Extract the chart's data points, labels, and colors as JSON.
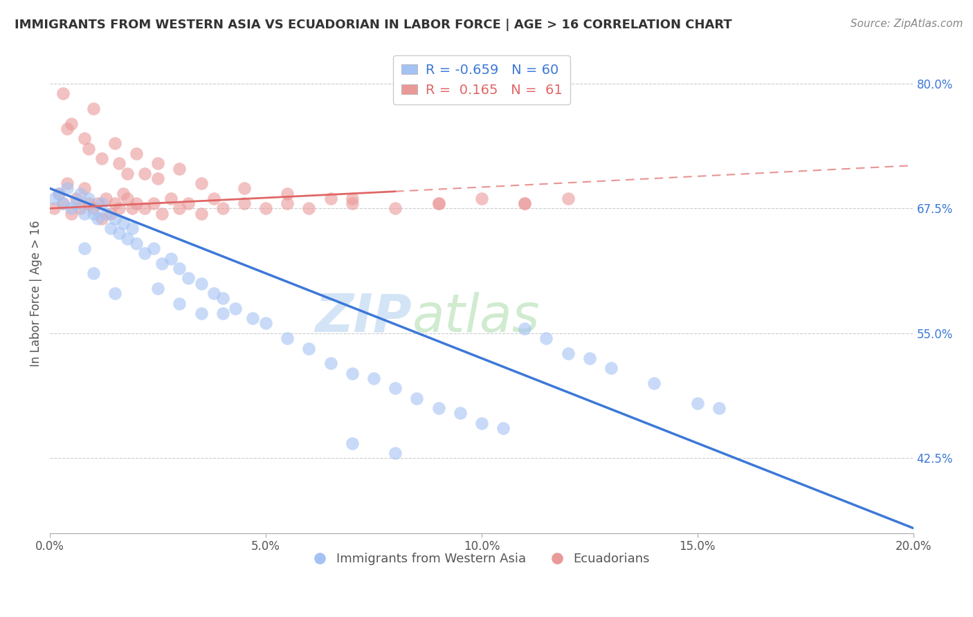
{
  "title": "IMMIGRANTS FROM WESTERN ASIA VS ECUADORIAN IN LABOR FORCE | AGE > 16 CORRELATION CHART",
  "source": "Source: ZipAtlas.com",
  "ylabel": "In Labor Force | Age > 16",
  "xlabel": "",
  "xlim": [
    0.0,
    20.0
  ],
  "ylim": [
    35.0,
    83.0
  ],
  "yticks": [
    42.5,
    55.0,
    67.5,
    80.0
  ],
  "xticks": [
    0.0,
    5.0,
    10.0,
    15.0,
    20.0
  ],
  "xtick_labels": [
    "0.0%",
    "5.0%",
    "10.0%",
    "15.0%",
    "20.0%"
  ],
  "legend_labels": [
    "Immigrants from Western Asia",
    "Ecuadorians"
  ],
  "blue_R": -0.659,
  "blue_N": 60,
  "pink_R": 0.165,
  "pink_N": 61,
  "blue_color": "#a4c2f4",
  "pink_color": "#ea9999",
  "blue_line_color": "#3c78d8",
  "pink_line_color": "#e06666",
  "background_color": "#ffffff",
  "grid_color": "#cccccc",
  "blue_scatter_x": [
    0.1,
    0.2,
    0.3,
    0.4,
    0.5,
    0.6,
    0.7,
    0.8,
    0.9,
    1.0,
    1.1,
    1.2,
    1.3,
    1.4,
    1.5,
    1.6,
    1.7,
    1.8,
    1.9,
    2.0,
    2.2,
    2.4,
    2.6,
    2.8,
    3.0,
    3.2,
    3.5,
    3.8,
    4.0,
    4.3,
    4.7,
    5.0,
    5.5,
    6.0,
    6.5,
    7.0,
    7.5,
    8.0,
    8.5,
    9.0,
    9.5,
    10.0,
    10.5,
    11.0,
    11.5,
    12.0,
    12.5,
    13.0,
    14.0,
    15.0,
    15.5,
    1.0,
    2.5,
    3.0,
    3.5,
    7.0,
    8.0,
    0.8,
    1.5,
    4.0
  ],
  "blue_scatter_y": [
    68.5,
    69.0,
    68.0,
    69.5,
    67.5,
    68.0,
    69.0,
    67.0,
    68.5,
    67.0,
    66.5,
    68.0,
    67.0,
    65.5,
    66.5,
    65.0,
    66.0,
    64.5,
    65.5,
    64.0,
    63.0,
    63.5,
    62.0,
    62.5,
    61.5,
    60.5,
    60.0,
    59.0,
    58.5,
    57.5,
    56.5,
    56.0,
    54.5,
    53.5,
    52.0,
    51.0,
    50.5,
    49.5,
    48.5,
    47.5,
    47.0,
    46.0,
    45.5,
    55.5,
    54.5,
    53.0,
    52.5,
    51.5,
    50.0,
    48.0,
    47.5,
    61.0,
    59.5,
    58.0,
    57.0,
    44.0,
    43.0,
    63.5,
    59.0,
    57.0
  ],
  "pink_scatter_x": [
    0.1,
    0.2,
    0.3,
    0.4,
    0.5,
    0.6,
    0.7,
    0.8,
    0.9,
    1.0,
    1.1,
    1.2,
    1.3,
    1.4,
    1.5,
    1.6,
    1.7,
    1.8,
    1.9,
    2.0,
    2.2,
    2.4,
    2.6,
    2.8,
    3.0,
    3.2,
    3.5,
    3.8,
    4.0,
    4.5,
    5.0,
    5.5,
    6.0,
    6.5,
    7.0,
    8.0,
    9.0,
    10.0,
    11.0,
    12.0,
    1.0,
    1.5,
    2.0,
    2.5,
    3.0,
    0.3,
    0.5,
    0.8,
    1.2,
    1.8,
    2.5,
    3.5,
    4.5,
    5.5,
    7.0,
    9.0,
    11.0,
    0.4,
    0.9,
    1.6,
    2.2
  ],
  "pink_scatter_y": [
    67.5,
    69.0,
    68.0,
    70.0,
    67.0,
    68.5,
    67.5,
    69.5,
    68.0,
    67.5,
    68.0,
    66.5,
    68.5,
    67.0,
    68.0,
    67.5,
    69.0,
    68.5,
    67.5,
    68.0,
    67.5,
    68.0,
    67.0,
    68.5,
    67.5,
    68.0,
    67.0,
    68.5,
    67.5,
    68.0,
    67.5,
    68.0,
    67.5,
    68.5,
    68.0,
    67.5,
    68.0,
    68.5,
    68.0,
    68.5,
    77.5,
    74.0,
    73.0,
    72.0,
    71.5,
    79.0,
    76.0,
    74.5,
    72.5,
    71.0,
    70.5,
    70.0,
    69.5,
    69.0,
    68.5,
    68.0,
    68.0,
    75.5,
    73.5,
    72.0,
    71.0
  ],
  "blue_line_x0": 0.0,
  "blue_line_y0": 69.5,
  "blue_line_x1": 20.0,
  "blue_line_y1": 35.5,
  "pink_line_solid_x0": 0.0,
  "pink_line_solid_y0": 67.5,
  "pink_line_solid_x1": 8.0,
  "pink_line_solid_y1": 69.2,
  "pink_line_dash_x0": 8.0,
  "pink_line_dash_y0": 69.2,
  "pink_line_dash_x1": 20.0,
  "pink_line_dash_y1": 71.8,
  "watermark_zip_color": "#c8d8f0",
  "watermark_atlas_color": "#d0e8d0",
  "title_fontsize": 13,
  "source_fontsize": 11,
  "tick_fontsize": 12,
  "ylabel_fontsize": 12
}
